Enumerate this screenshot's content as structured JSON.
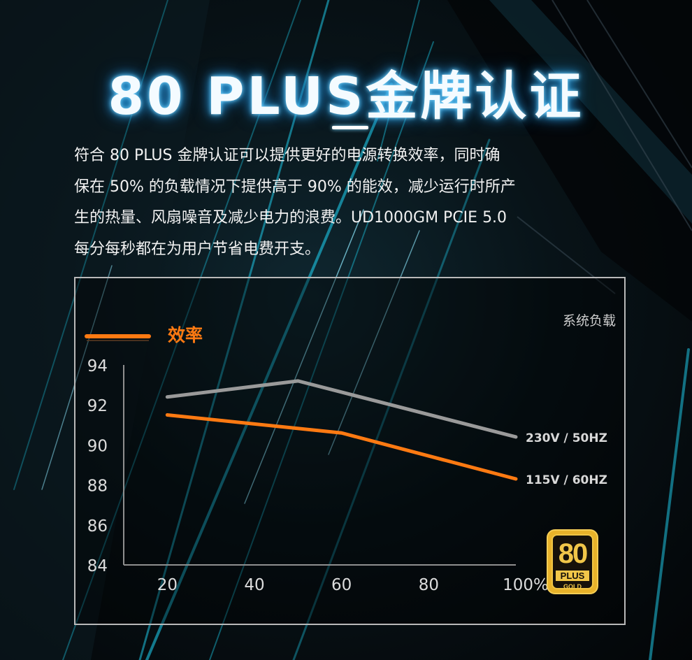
{
  "header": {
    "title": "80 PLUS金牌认证"
  },
  "description": {
    "lines": [
      "符合 80 PLUS 金牌认证可以提供更好的电源转换效率，同时确",
      "保在 50% 的负载情况下提供高于 90% 的能效，减少运行时所产",
      "生的热量、风扇噪音及减少电力的浪费。UD1000GM PCIE 5.0",
      "每分每秒都在为用户节省电费开支。"
    ]
  },
  "badge": {
    "number": "80",
    "plus": "PLUS",
    "tier": "GOLD",
    "color": "#e8b22a"
  },
  "chart_data": {
    "type": "line",
    "legend_title": "效率",
    "x_axis_label": "系统负载",
    "xlim": [
      10,
      100
    ],
    "ylim": [
      84,
      94
    ],
    "x_ticks": [
      {
        "value": 20,
        "label": "20"
      },
      {
        "value": 40,
        "label": "40"
      },
      {
        "value": 60,
        "label": "60"
      },
      {
        "value": 80,
        "label": "80"
      },
      {
        "value": 100,
        "label": "100%"
      }
    ],
    "y_ticks": [
      {
        "value": 94,
        "label": "94"
      },
      {
        "value": 92,
        "label": "92"
      },
      {
        "value": 90,
        "label": "90"
      },
      {
        "value": 88,
        "label": "88"
      },
      {
        "value": 86,
        "label": "86"
      },
      {
        "value": 84,
        "label": "84"
      }
    ],
    "grid": false,
    "series": [
      {
        "name": "230V / 50HZ",
        "color": "#9a9a9a",
        "x": [
          20,
          50,
          100
        ],
        "y": [
          92.4,
          93.2,
          90.4
        ]
      },
      {
        "name": "115V / 60HZ",
        "color": "#ff7a12",
        "x": [
          20,
          60,
          100
        ],
        "y": [
          91.5,
          90.6,
          88.3
        ]
      }
    ]
  }
}
